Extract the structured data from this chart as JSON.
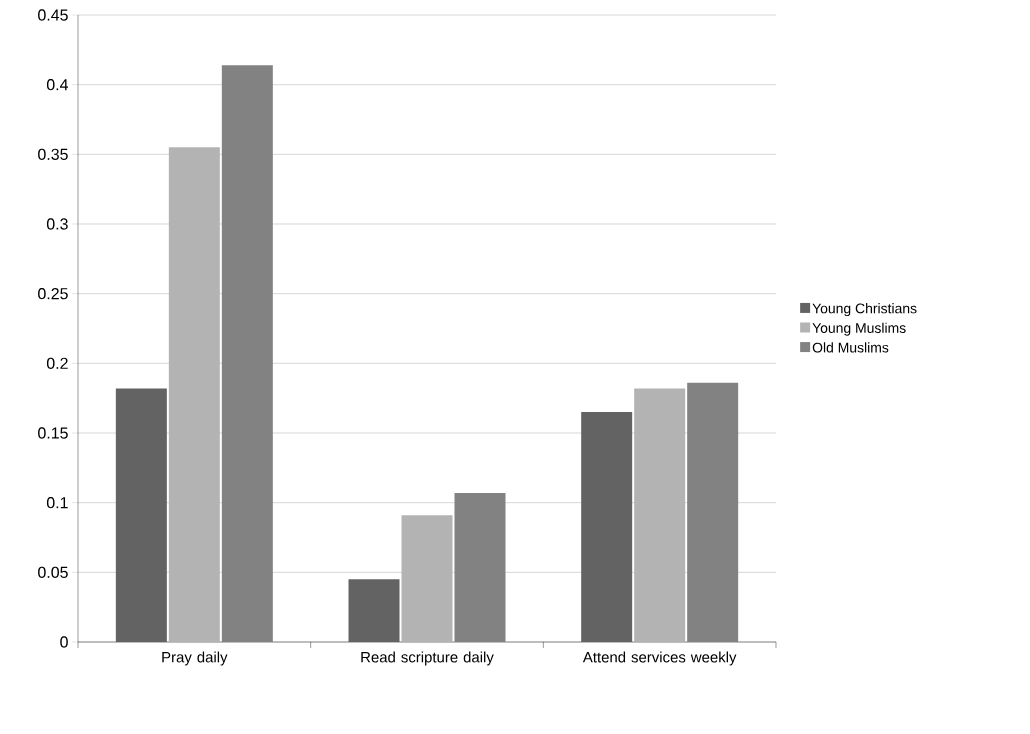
{
  "chart_data": {
    "type": "bar",
    "categories": [
      "Pray daily",
      "Read scripture daily",
      "Attend services weekly"
    ],
    "series": [
      {
        "name": "Young Christians",
        "color": "#636363",
        "values": [
          0.182,
          0.045,
          0.165
        ]
      },
      {
        "name": "Young Muslims",
        "color": "#b3b3b3",
        "values": [
          0.355,
          0.091,
          0.182
        ]
      },
      {
        "name": "Old Muslims",
        "color": "#828282",
        "values": [
          0.414,
          0.107,
          0.186
        ]
      }
    ],
    "ylim": [
      0,
      0.45
    ],
    "yticks": [
      0,
      0.05,
      0.1,
      0.15,
      0.2,
      0.25,
      0.3,
      0.35,
      0.4,
      0.45
    ],
    "grid": "y",
    "legend": "right"
  }
}
